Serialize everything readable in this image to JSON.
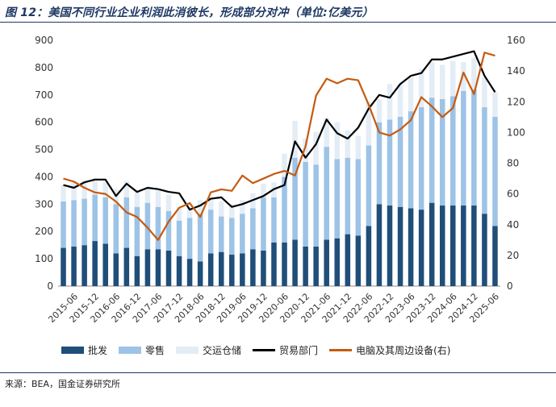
{
  "header": {
    "title": "图 12：美国不同行业企业利润此消彼长，形成部分对冲（单位:亿美元）"
  },
  "footer": {
    "source": "来源：BEA，国金证券研究所"
  },
  "colors": {
    "wholesale": "#1f4e79",
    "retail": "#9dc3e6",
    "transport": "#e4edf6",
    "trade": "#000000",
    "electronics": "#c55a11",
    "title": "#1f3864"
  },
  "chart_data": {
    "type": "bar",
    "stacked": true,
    "x": [
      "2015-03",
      "2015-06",
      "2015-09",
      "2015-12",
      "2016-03",
      "2016-06",
      "2016-09",
      "2016-12",
      "2017-03",
      "2017-06",
      "2017-09",
      "2017-12",
      "2018-03",
      "2018-06",
      "2018-09",
      "2018-12",
      "2019-03",
      "2019-06",
      "2019-09",
      "2019-12",
      "2020-03",
      "2020-06",
      "2020-09",
      "2020-12",
      "2021-03",
      "2021-06",
      "2021-09",
      "2021-12",
      "2022-03",
      "2022-06",
      "2022-09",
      "2022-12",
      "2023-03",
      "2023-06",
      "2023-09",
      "2023-12",
      "2024-03",
      "2024-06",
      "2024-09",
      "2024-12",
      "2025-03",
      "2025-06"
    ],
    "x_tick_labels": [
      "2015-06",
      "2015-12",
      "2016-06",
      "2016-12",
      "2017-06",
      "2017-12",
      "2018-06",
      "2018-12",
      "2019-06",
      "2019-12",
      "2020-06",
      "2020-12",
      "2021-06",
      "2021-12",
      "2022-06",
      "2022-12",
      "2023-06",
      "2023-12",
      "2024-06",
      "2024-12",
      "2025-06"
    ],
    "ylim_left": [
      0,
      900
    ],
    "yticks_left": [
      0,
      100,
      200,
      300,
      400,
      500,
      600,
      700,
      800,
      900
    ],
    "ylim_right": [
      0,
      160
    ],
    "yticks_right": [
      0,
      20,
      40,
      60,
      80,
      100,
      120,
      140,
      160
    ],
    "legend_position": "bottom",
    "series": [
      {
        "name": "批发",
        "type": "bar",
        "axis": "left",
        "color": "#1f4e79",
        "values": [
          140,
          145,
          150,
          165,
          155,
          120,
          140,
          110,
          135,
          135,
          130,
          110,
          100,
          90,
          120,
          125,
          115,
          120,
          135,
          130,
          160,
          160,
          170,
          145,
          145,
          170,
          175,
          190,
          185,
          220,
          300,
          295,
          290,
          285,
          280,
          305,
          295,
          295,
          295,
          295,
          265,
          220
        ]
      },
      {
        "name": "零售",
        "type": "bar",
        "axis": "left",
        "color": "#9dc3e6",
        "values": [
          170,
          170,
          170,
          170,
          170,
          180,
          185,
          180,
          170,
          155,
          145,
          130,
          150,
          175,
          160,
          130,
          135,
          145,
          150,
          195,
          165,
          240,
          300,
          310,
          300,
          340,
          290,
          280,
          280,
          295,
          300,
          315,
          330,
          355,
          375,
          385,
          390,
          400,
          420,
          425,
          390,
          400
        ]
      },
      {
        "name": "交运仓储",
        "type": "bar",
        "axis": "left",
        "color": "#e4edf6",
        "values": [
          60,
          65,
          65,
          60,
          60,
          55,
          60,
          60,
          55,
          60,
          60,
          50,
          40,
          50,
          45,
          55,
          50,
          50,
          55,
          50,
          55,
          85,
          135,
          85,
          120,
          105,
          135,
          100,
          85,
          160,
          85,
          130,
          120,
          125,
          140,
          130,
          125,
          130,
          105,
          115,
          110,
          90
        ]
      },
      {
        "name": "贸易部门",
        "type": "line",
        "axis": "left",
        "color": "#000000",
        "values": [
          370,
          360,
          380,
          390,
          390,
          330,
          375,
          345,
          360,
          355,
          345,
          340,
          280,
          295,
          320,
          325,
          290,
          300,
          315,
          330,
          355,
          370,
          530,
          470,
          520,
          610,
          560,
          540,
          580,
          650,
          700,
          690,
          740,
          770,
          780,
          830,
          830,
          840,
          850,
          860,
          770,
          710
        ]
      },
      {
        "name": "电脑及其周边设备(右)",
        "type": "line",
        "axis": "right",
        "color": "#c55a11",
        "values": [
          70,
          68,
          64,
          61,
          60,
          55,
          48,
          45,
          38,
          30,
          42,
          51,
          54,
          45,
          61,
          63,
          62,
          72,
          67,
          70,
          73,
          75,
          72,
          91,
          124,
          135,
          132,
          135,
          134,
          118,
          100,
          98,
          102,
          108,
          123,
          117,
          110,
          116,
          139,
          125,
          152,
          150
        ]
      }
    ]
  }
}
